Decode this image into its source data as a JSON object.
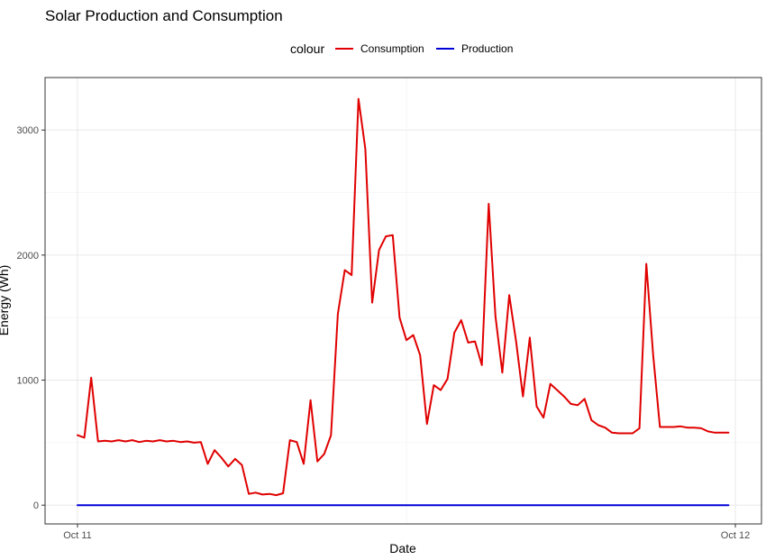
{
  "chart_data": {
    "type": "line",
    "title": "Solar Production and Consumption",
    "xlabel": "Date",
    "ylabel": "Energy (Wh)",
    "legend": {
      "title": "colour",
      "position": "top"
    },
    "grid": true,
    "xlim": [
      0,
      1
    ],
    "ylim": [
      -150,
      3420
    ],
    "x_ticks": [
      {
        "label": "Oct 11",
        "value": 0
      },
      {
        "label": "Oct 12",
        "value": 1
      }
    ],
    "y_ticks": [
      0,
      1000,
      2000,
      3000
    ],
    "series": [
      {
        "name": "Consumption",
        "color": "#e00000",
        "x": [
          0,
          0.0104,
          0.0208,
          0.0313,
          0.0417,
          0.0521,
          0.0625,
          0.0729,
          0.0833,
          0.0938,
          0.1042,
          0.1146,
          0.125,
          0.1354,
          0.1458,
          0.1563,
          0.1667,
          0.1771,
          0.1875,
          0.1979,
          0.2083,
          0.2188,
          0.2292,
          0.2396,
          0.25,
          0.2604,
          0.2708,
          0.2813,
          0.2917,
          0.3021,
          0.3125,
          0.3229,
          0.3333,
          0.3438,
          0.3542,
          0.3646,
          0.375,
          0.3854,
          0.3958,
          0.4063,
          0.4167,
          0.4271,
          0.4375,
          0.4479,
          0.4583,
          0.4688,
          0.4792,
          0.4896,
          0.5,
          0.5104,
          0.5208,
          0.5313,
          0.5417,
          0.5521,
          0.5625,
          0.5729,
          0.5833,
          0.5938,
          0.6042,
          0.6146,
          0.625,
          0.6354,
          0.6458,
          0.6563,
          0.6667,
          0.6771,
          0.6875,
          0.6979,
          0.7083,
          0.7188,
          0.7292,
          0.7396,
          0.75,
          0.7604,
          0.7708,
          0.7813,
          0.7917,
          0.8021,
          0.8125,
          0.8229,
          0.8333,
          0.8438,
          0.8542,
          0.8646,
          0.875,
          0.8854,
          0.8958,
          0.9063,
          0.9167,
          0.9271,
          0.9375,
          0.9479,
          0.9583,
          0.9688,
          0.9792,
          0.9896
        ],
        "values": [
          560,
          540,
          1020,
          510,
          515,
          510,
          520,
          510,
          520,
          505,
          515,
          510,
          520,
          510,
          515,
          505,
          510,
          500,
          505,
          330,
          440,
          380,
          310,
          370,
          320,
          90,
          100,
          85,
          90,
          80,
          95,
          520,
          505,
          330,
          840,
          350,
          410,
          560,
          1530,
          1880,
          1840,
          3250,
          2850,
          1620,
          2040,
          2150,
          2160,
          1500,
          1320,
          1360,
          1200,
          650,
          960,
          920,
          1010,
          1380,
          1480,
          1300,
          1310,
          1120,
          2410,
          1510,
          1060,
          1680,
          1310,
          870,
          1340,
          790,
          700,
          970,
          920,
          870,
          810,
          800,
          850,
          680,
          640,
          620,
          580,
          575,
          575,
          575,
          615,
          1930,
          1200,
          625,
          625,
          625,
          630,
          620,
          620,
          615,
          590,
          580,
          580,
          580
        ]
      },
      {
        "name": "Production",
        "color": "#0000d8",
        "x": [
          0,
          0.0104,
          0.0208,
          0.0313,
          0.0417,
          0.0521,
          0.0625,
          0.0729,
          0.0833,
          0.0938,
          0.1042,
          0.1146,
          0.125,
          0.1354,
          0.1458,
          0.1563,
          0.1667,
          0.1771,
          0.1875,
          0.1979,
          0.2083,
          0.2188,
          0.2292,
          0.2396,
          0.25,
          0.2604,
          0.2708,
          0.2813,
          0.2917,
          0.3021,
          0.3125,
          0.3229,
          0.3333,
          0.3438,
          0.3542,
          0.3646,
          0.375,
          0.3854,
          0.3958,
          0.4063,
          0.4167,
          0.4271,
          0.4375,
          0.4479,
          0.4583,
          0.4688,
          0.4792,
          0.4896,
          0.5,
          0.5104,
          0.5208,
          0.5313,
          0.5417,
          0.5521,
          0.5625,
          0.5729,
          0.5833,
          0.5938,
          0.6042,
          0.6146,
          0.625,
          0.6354,
          0.6458,
          0.6563,
          0.6667,
          0.6771,
          0.6875,
          0.6979,
          0.7083,
          0.7188,
          0.7292,
          0.7396,
          0.75,
          0.7604,
          0.7708,
          0.7813,
          0.7917,
          0.8021,
          0.8125,
          0.8229,
          0.8333,
          0.8438,
          0.8542,
          0.8646,
          0.875,
          0.8854,
          0.8958,
          0.9063,
          0.9167,
          0.9271,
          0.9375,
          0.9479,
          0.9583,
          0.9688,
          0.9792,
          0.9896
        ],
        "values": [
          0,
          0,
          0,
          0,
          0,
          0,
          0,
          0,
          0,
          0,
          0,
          0,
          0,
          0,
          0,
          0,
          0,
          0,
          0,
          0,
          0,
          0,
          0,
          0,
          0,
          0,
          0,
          0,
          0,
          0,
          0,
          0,
          0,
          0,
          0,
          0,
          0,
          0,
          0,
          0,
          0,
          0,
          0,
          0,
          0,
          0,
          0,
          0,
          0,
          0,
          0,
          0,
          0,
          0,
          0,
          0,
          0,
          0,
          0,
          0,
          0,
          0,
          0,
          0,
          0,
          0,
          0,
          0,
          0,
          0,
          0,
          0,
          0,
          0,
          0,
          0,
          0,
          0,
          0,
          0,
          0,
          0,
          0,
          0,
          0,
          0,
          0,
          0,
          0,
          0,
          0,
          0,
          0,
          0,
          0,
          0
        ]
      }
    ]
  }
}
